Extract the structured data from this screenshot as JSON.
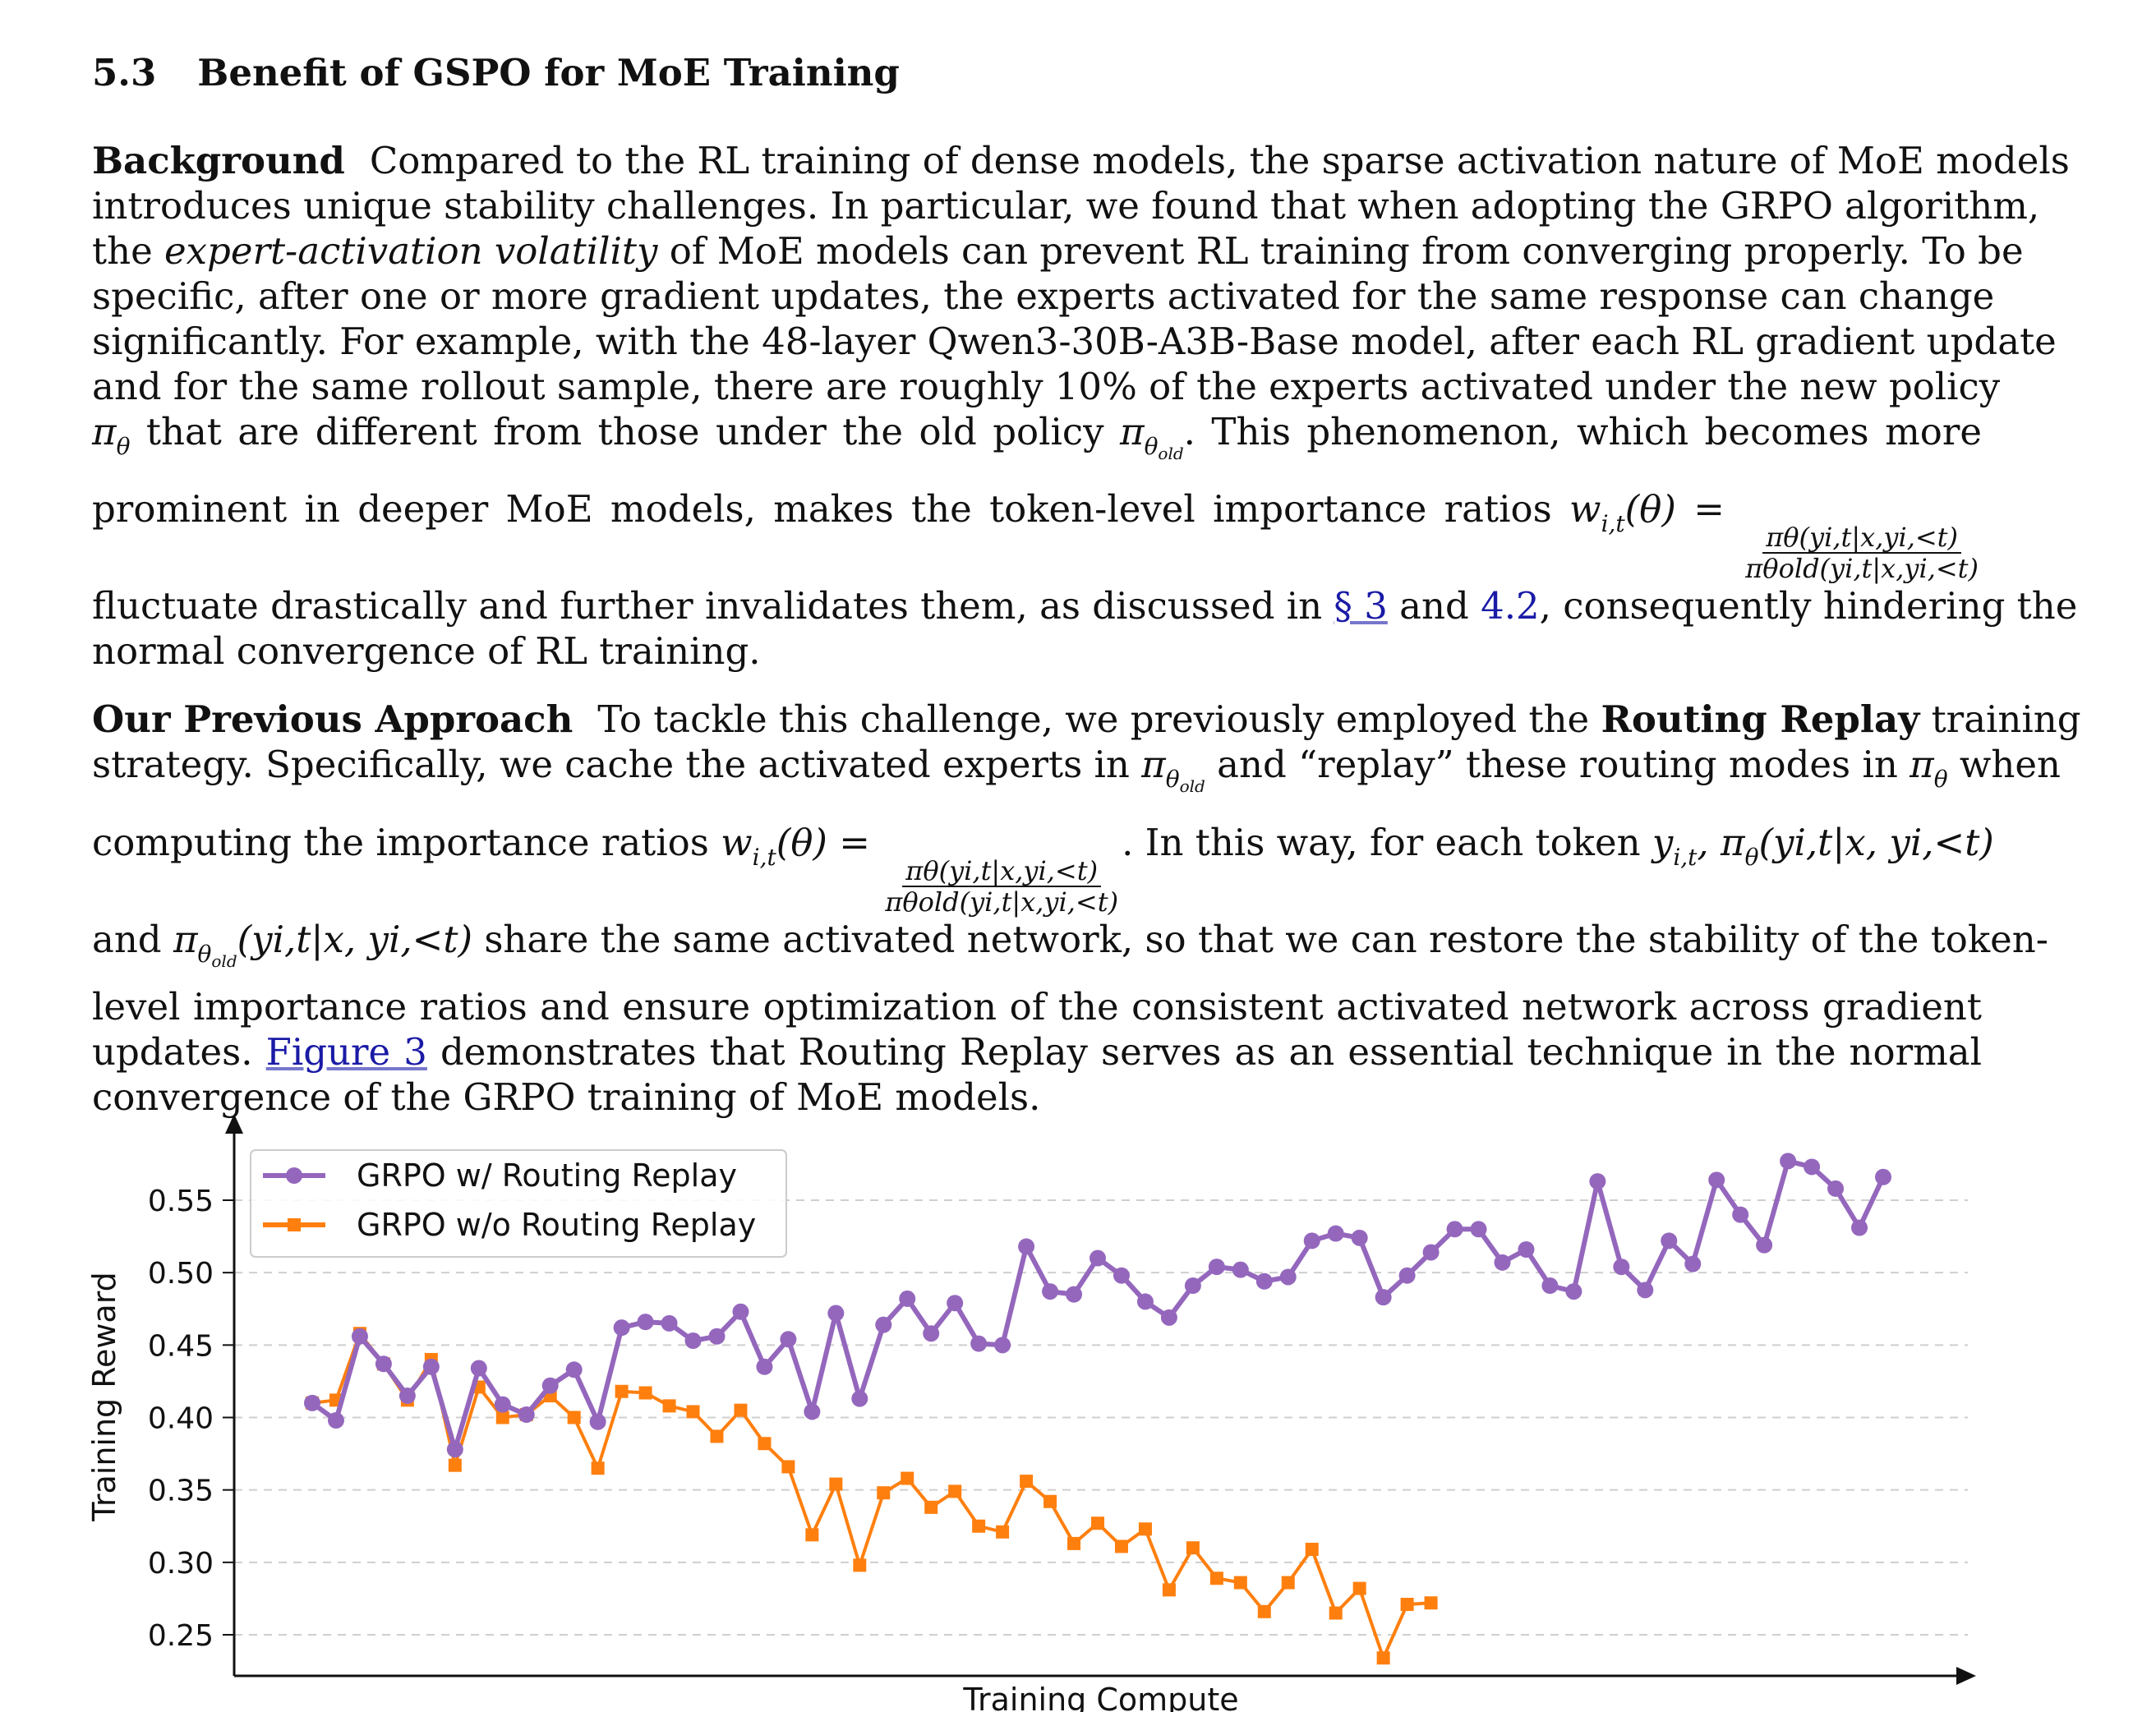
{
  "section": {
    "number": "5.3",
    "title": "Benefit of GSPO for MoE Training"
  },
  "background": {
    "heading": "Background",
    "l1": "Compared to the RL training of dense models, the sparse activation nature of MoE models",
    "l2": "introduces unique stability challenges. In particular, we found that when adopting the GRPO algorithm,",
    "l3a": "the",
    "l3i": "expert-activation volatility",
    "l3b": "of MoE models can prevent RL training from converging properly. To be",
    "l4": "specific, after one or more gradient updates, the experts activated for the same response can change",
    "l5": "significantly. For example, with the 48-layer Qwen3-30B-A3B-Base model, after each RL gradient update",
    "l6": "and for the same rollout sample, there are roughly 10% of the experts activated under the new policy",
    "l7a": "that are different from those under the old policy",
    "l7b": ". This phenomenon, which becomes more",
    "l8a": "prominent in deeper MoE models, makes the token-level importance ratios",
    "l9a": "fluctuate drastically and further invalidates them, as discussed in",
    "ref1": "§ 3",
    "l9b": "and",
    "ref2": "4.2",
    "l9c": ", consequently hindering the",
    "l10": "normal convergence of RL training."
  },
  "previous": {
    "heading": "Our Previous Approach",
    "l1a": "To tackle this challenge, we previously employed the",
    "l1b": "Routing Replay",
    "l1c": "training",
    "l2a": "strategy. Specifically, we cache the activated experts in",
    "l2b": "and “replay” these routing modes in",
    "l2c": "when",
    "l3a": "computing the importance ratios",
    "l3b": ". In this way, for each token",
    "l4a": "and",
    "l4b": "share the same activated network, so that we can restore the stability of the token-",
    "l5": "level importance ratios and ensure optimization of the consistent activated network across gradient",
    "l6a": "updates.",
    "ref": "Figure 3",
    "l6b": "demonstrates that Routing Replay serves as an essential technique in the normal",
    "l7": "convergence of the GRPO training of MoE models."
  },
  "math": {
    "pi": "π",
    "theta": "θ",
    "old": "old",
    "w": "w",
    "sub_it": "i,t",
    "theta_arg": "(θ) =",
    "ratio_num": "πθ(yi,t|x,yi,<t)",
    "ratio_den": "πθold(yi,t|x,yi,<t)",
    "y": "y",
    "cond": "(yi,t|x, yi,<t)"
  },
  "chart_data": {
    "type": "line",
    "xlabel": "Training Compute",
    "ylabel": "Training Reward",
    "ylim": [
      0.22,
      0.59
    ],
    "yticks": [
      "0.25",
      "0.30",
      "0.35",
      "0.40",
      "0.45",
      "0.50",
      "0.55"
    ],
    "grid": "horizontal dashed",
    "legend_position": "top-left",
    "series": [
      {
        "name": "GRPO w/ Routing Replay",
        "color": "#9467bd",
        "marker": "circle",
        "values": [
          0.41,
          0.398,
          0.456,
          0.437,
          0.415,
          0.435,
          0.378,
          0.434,
          0.409,
          0.402,
          0.422,
          0.433,
          0.397,
          0.462,
          0.466,
          0.465,
          0.453,
          0.456,
          0.473,
          0.435,
          0.454,
          0.404,
          0.472,
          0.413,
          0.464,
          0.482,
          0.458,
          0.479,
          0.451,
          0.45,
          0.518,
          0.487,
          0.485,
          0.51,
          0.498,
          0.48,
          0.469,
          0.491,
          0.504,
          0.502,
          0.494,
          0.497,
          0.522,
          0.527,
          0.524,
          0.483,
          0.498,
          0.514,
          0.53,
          0.53,
          0.507,
          0.516,
          0.491,
          0.487,
          0.563,
          0.504,
          0.488,
          0.522,
          0.506,
          0.564,
          0.54,
          0.519,
          0.577,
          0.573,
          0.558,
          0.531,
          0.566
        ]
      },
      {
        "name": "GRPO w/o Routing Replay",
        "color": "#ff7f0e",
        "marker": "square",
        "values": [
          0.41,
          0.412,
          0.458,
          0.437,
          0.412,
          0.44,
          0.367,
          0.421,
          0.4,
          0.402,
          0.415,
          0.4,
          0.365,
          0.418,
          0.417,
          0.408,
          0.404,
          0.387,
          0.405,
          0.382,
          0.366,
          0.319,
          0.354,
          0.298,
          0.348,
          0.358,
          0.338,
          0.349,
          0.325,
          0.321,
          0.356,
          0.342,
          0.313,
          0.327,
          0.311,
          0.323,
          0.281,
          0.31,
          0.289,
          0.286,
          0.266,
          0.286,
          0.309,
          0.265,
          0.282,
          0.234,
          0.271,
          0.272
        ]
      }
    ]
  }
}
